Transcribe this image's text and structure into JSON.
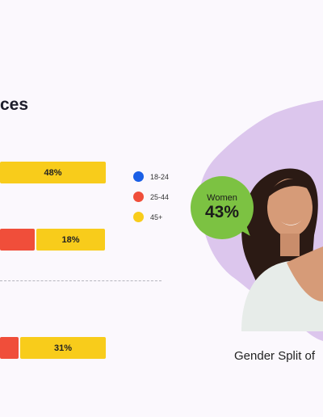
{
  "title": "ces",
  "legend": [
    {
      "label": "18-24",
      "color": "#1a5fe6"
    },
    {
      "label": "25-44",
      "color": "#f04e3a"
    },
    {
      "label": "45+",
      "color": "#f8cc1b"
    }
  ],
  "chart_data": {
    "type": "bar",
    "title": "ces",
    "xlabel": "",
    "ylabel": "",
    "series": [
      {
        "name": "18-24",
        "values": [
          null,
          null,
          null
        ]
      },
      {
        "name": "25-44",
        "values": [
          null,
          null,
          null
        ]
      },
      {
        "name": "45+",
        "values": [
          48,
          18,
          31
        ]
      }
    ],
    "value_labels": [
      "48%",
      "18%",
      "31%"
    ],
    "legend_position": "right"
  },
  "badge": {
    "label": "Women",
    "value": "43%"
  },
  "caption": "Gender Split of"
}
